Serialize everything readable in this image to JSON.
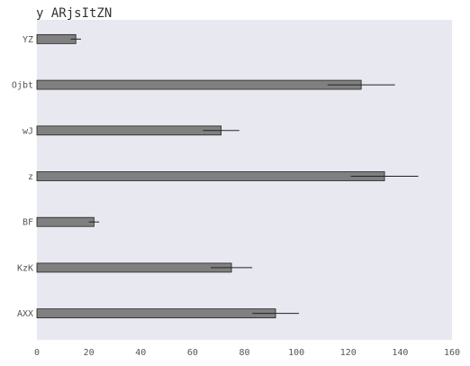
{
  "chart_data": {
    "type": "bar",
    "orientation": "horizontal",
    "title": "y ARjsItZN",
    "xlabel": "",
    "ylabel": "",
    "xlim": [
      0,
      160
    ],
    "xticks": [
      0,
      20,
      40,
      60,
      80,
      100,
      120,
      140,
      160
    ],
    "grid": false,
    "categories": [
      "YZ",
      "Ojbt",
      "wJ",
      "z",
      "BF",
      "KzK",
      "AXX"
    ],
    "values": [
      15,
      125,
      71,
      134,
      22,
      75,
      92
    ],
    "errors": [
      2,
      13,
      7,
      13,
      2,
      8,
      9
    ],
    "colors": {
      "bar": "#808080",
      "bar_edge": "#222222",
      "background": "#e8e8f0",
      "errorbar": "#222222"
    }
  }
}
